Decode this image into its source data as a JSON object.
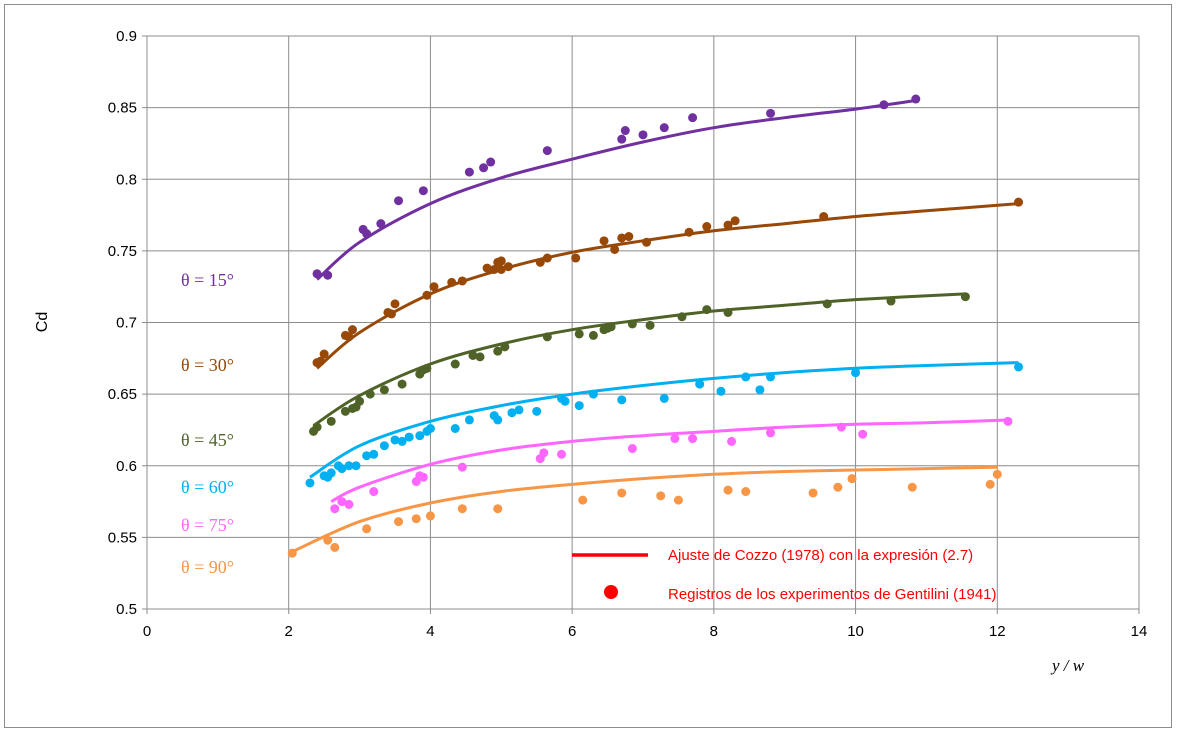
{
  "chart_data": {
    "type": "scatter",
    "title": "",
    "xlabel": "y / w",
    "ylabel": "Cd",
    "xlim": [
      0,
      14
    ],
    "ylim": [
      0.5,
      0.9
    ],
    "xticks": [
      "0",
      "2",
      "4",
      "6",
      "8",
      "10",
      "12",
      "14"
    ],
    "yticks": [
      "0.5",
      "0.55",
      "0.6",
      "0.65",
      "0.7",
      "0.75",
      "0.8",
      "0.85",
      "0.9"
    ],
    "grid": true,
    "legend": {
      "position": "bottom-right",
      "entries": [
        {
          "label": "Ajuste de Cozzo (1978) con la expresión (2.7)",
          "marker": "line",
          "color": "#ff0000"
        },
        {
          "label": "Registros de los experimentos de Gentilini (1941)",
          "marker": "dot",
          "color": "#ff0000"
        }
      ]
    },
    "series": [
      {
        "name": "θ = 15°",
        "color": "#7030a0",
        "points": [
          [
            2.4,
            0.734
          ],
          [
            2.55,
            0.733
          ],
          [
            3.05,
            0.765
          ],
          [
            3.1,
            0.762
          ],
          [
            3.3,
            0.769
          ],
          [
            3.55,
            0.785
          ],
          [
            3.9,
            0.792
          ],
          [
            4.55,
            0.805
          ],
          [
            4.75,
            0.808
          ],
          [
            4.85,
            0.812
          ],
          [
            5.65,
            0.82
          ],
          [
            6.7,
            0.828
          ],
          [
            6.75,
            0.834
          ],
          [
            7.0,
            0.831
          ],
          [
            7.3,
            0.836
          ],
          [
            7.7,
            0.843
          ],
          [
            8.8,
            0.846
          ],
          [
            10.4,
            0.852
          ],
          [
            10.85,
            0.856
          ]
        ],
        "fit": [
          [
            2.4,
            0.73
          ],
          [
            3.0,
            0.756
          ],
          [
            4.0,
            0.783
          ],
          [
            5.0,
            0.801
          ],
          [
            6.0,
            0.814
          ],
          [
            7.0,
            0.826
          ],
          [
            8.0,
            0.836
          ],
          [
            9.0,
            0.843
          ],
          [
            10.0,
            0.849
          ],
          [
            10.85,
            0.855
          ]
        ]
      },
      {
        "name": "θ = 30°",
        "color": "#984807",
        "points": [
          [
            2.4,
            0.672
          ],
          [
            2.45,
            0.673
          ],
          [
            2.5,
            0.678
          ],
          [
            2.8,
            0.691
          ],
          [
            2.85,
            0.69
          ],
          [
            2.9,
            0.695
          ],
          [
            3.4,
            0.707
          ],
          [
            3.45,
            0.706
          ],
          [
            3.5,
            0.713
          ],
          [
            3.95,
            0.719
          ],
          [
            4.05,
            0.725
          ],
          [
            4.3,
            0.728
          ],
          [
            4.45,
            0.729
          ],
          [
            4.8,
            0.738
          ],
          [
            4.9,
            0.737
          ],
          [
            4.95,
            0.742
          ],
          [
            5.0,
            0.743
          ],
          [
            5.0,
            0.737
          ],
          [
            5.1,
            0.739
          ],
          [
            5.55,
            0.742
          ],
          [
            5.65,
            0.745
          ],
          [
            6.05,
            0.745
          ],
          [
            6.45,
            0.757
          ],
          [
            6.6,
            0.751
          ],
          [
            6.7,
            0.759
          ],
          [
            6.8,
            0.76
          ],
          [
            7.05,
            0.756
          ],
          [
            7.65,
            0.763
          ],
          [
            7.9,
            0.767
          ],
          [
            8.2,
            0.768
          ],
          [
            8.3,
            0.771
          ],
          [
            9.55,
            0.774
          ],
          [
            12.3,
            0.784
          ]
        ],
        "fit": [
          [
            2.4,
            0.668
          ],
          [
            3.0,
            0.693
          ],
          [
            4.0,
            0.72
          ],
          [
            5.0,
            0.737
          ],
          [
            6.0,
            0.749
          ],
          [
            7.0,
            0.757
          ],
          [
            8.0,
            0.764
          ],
          [
            9.0,
            0.769
          ],
          [
            10.0,
            0.774
          ],
          [
            11.0,
            0.778
          ],
          [
            12.3,
            0.783
          ]
        ]
      },
      {
        "name": "θ = 45°",
        "color": "#4f6228",
        "points": [
          [
            2.35,
            0.624
          ],
          [
            2.4,
            0.627
          ],
          [
            2.6,
            0.631
          ],
          [
            2.8,
            0.638
          ],
          [
            2.9,
            0.64
          ],
          [
            2.95,
            0.641
          ],
          [
            3.0,
            0.645
          ],
          [
            3.15,
            0.65
          ],
          [
            3.35,
            0.653
          ],
          [
            3.6,
            0.657
          ],
          [
            3.85,
            0.664
          ],
          [
            3.9,
            0.667
          ],
          [
            3.95,
            0.668
          ],
          [
            4.35,
            0.671
          ],
          [
            4.6,
            0.677
          ],
          [
            4.7,
            0.676
          ],
          [
            4.95,
            0.68
          ],
          [
            5.05,
            0.683
          ],
          [
            5.65,
            0.69
          ],
          [
            6.1,
            0.692
          ],
          [
            6.3,
            0.691
          ],
          [
            6.45,
            0.695
          ],
          [
            6.5,
            0.696
          ],
          [
            6.55,
            0.697
          ],
          [
            6.85,
            0.699
          ],
          [
            7.1,
            0.698
          ],
          [
            7.55,
            0.704
          ],
          [
            7.9,
            0.709
          ],
          [
            8.2,
            0.707
          ],
          [
            9.6,
            0.713
          ],
          [
            10.5,
            0.715
          ],
          [
            11.55,
            0.718
          ]
        ],
        "fit": [
          [
            2.35,
            0.628
          ],
          [
            3.0,
            0.649
          ],
          [
            4.0,
            0.671
          ],
          [
            5.0,
            0.685
          ],
          [
            6.0,
            0.695
          ],
          [
            7.0,
            0.702
          ],
          [
            8.0,
            0.708
          ],
          [
            9.0,
            0.712
          ],
          [
            10.0,
            0.716
          ],
          [
            11.55,
            0.72
          ]
        ]
      },
      {
        "name": "θ = 60°",
        "color": "#00b0f0",
        "points": [
          [
            2.3,
            0.588
          ],
          [
            2.5,
            0.593
          ],
          [
            2.55,
            0.592
          ],
          [
            2.6,
            0.595
          ],
          [
            2.7,
            0.6
          ],
          [
            2.75,
            0.598
          ],
          [
            2.85,
            0.6
          ],
          [
            2.95,
            0.6
          ],
          [
            3.1,
            0.607
          ],
          [
            3.2,
            0.608
          ],
          [
            3.35,
            0.614
          ],
          [
            3.5,
            0.618
          ],
          [
            3.6,
            0.617
          ],
          [
            3.7,
            0.62
          ],
          [
            3.85,
            0.621
          ],
          [
            3.95,
            0.624
          ],
          [
            4.0,
            0.626
          ],
          [
            4.35,
            0.626
          ],
          [
            4.55,
            0.632
          ],
          [
            4.9,
            0.635
          ],
          [
            4.95,
            0.632
          ],
          [
            5.15,
            0.637
          ],
          [
            5.25,
            0.639
          ],
          [
            5.5,
            0.638
          ],
          [
            5.85,
            0.647
          ],
          [
            5.9,
            0.645
          ],
          [
            6.1,
            0.642
          ],
          [
            6.3,
            0.65
          ],
          [
            6.7,
            0.646
          ],
          [
            7.3,
            0.647
          ],
          [
            7.8,
            0.657
          ],
          [
            8.1,
            0.652
          ],
          [
            8.45,
            0.662
          ],
          [
            8.65,
            0.653
          ],
          [
            8.8,
            0.662
          ],
          [
            10.0,
            0.665
          ],
          [
            12.3,
            0.669
          ]
        ],
        "fit": [
          [
            2.3,
            0.592
          ],
          [
            3.0,
            0.614
          ],
          [
            4.0,
            0.631
          ],
          [
            5.0,
            0.642
          ],
          [
            6.0,
            0.65
          ],
          [
            7.0,
            0.656
          ],
          [
            8.0,
            0.661
          ],
          [
            9.0,
            0.665
          ],
          [
            10.0,
            0.668
          ],
          [
            11.0,
            0.67
          ],
          [
            12.3,
            0.672
          ]
        ]
      },
      {
        "name": "θ = 75°",
        "color": "#ff66ff",
        "points": [
          [
            2.65,
            0.57
          ],
          [
            2.75,
            0.575
          ],
          [
            2.85,
            0.573
          ],
          [
            3.2,
            0.582
          ],
          [
            3.8,
            0.589
          ],
          [
            3.85,
            0.593
          ],
          [
            3.9,
            0.592
          ],
          [
            4.45,
            0.599
          ],
          [
            5.55,
            0.605
          ],
          [
            5.6,
            0.609
          ],
          [
            5.85,
            0.608
          ],
          [
            6.85,
            0.612
          ],
          [
            7.45,
            0.619
          ],
          [
            7.7,
            0.619
          ],
          [
            8.25,
            0.617
          ],
          [
            8.8,
            0.623
          ],
          [
            9.8,
            0.627
          ],
          [
            10.1,
            0.622
          ],
          [
            12.15,
            0.631
          ]
        ],
        "fit": [
          [
            2.6,
            0.575
          ],
          [
            3.0,
            0.585
          ],
          [
            4.0,
            0.601
          ],
          [
            5.0,
            0.611
          ],
          [
            6.0,
            0.617
          ],
          [
            7.0,
            0.621
          ],
          [
            8.0,
            0.624
          ],
          [
            9.0,
            0.627
          ],
          [
            10.0,
            0.629
          ],
          [
            11.0,
            0.63
          ],
          [
            12.2,
            0.632
          ]
        ]
      },
      {
        "name": "θ = 90°",
        "color": "#f79646",
        "points": [
          [
            2.05,
            0.539
          ],
          [
            2.55,
            0.548
          ],
          [
            2.65,
            0.543
          ],
          [
            3.1,
            0.556
          ],
          [
            3.55,
            0.561
          ],
          [
            3.8,
            0.563
          ],
          [
            4.0,
            0.565
          ],
          [
            4.45,
            0.57
          ],
          [
            4.95,
            0.57
          ],
          [
            6.15,
            0.576
          ],
          [
            6.7,
            0.581
          ],
          [
            7.25,
            0.579
          ],
          [
            7.5,
            0.576
          ],
          [
            8.2,
            0.583
          ],
          [
            8.45,
            0.582
          ],
          [
            9.4,
            0.581
          ],
          [
            9.75,
            0.585
          ],
          [
            9.95,
            0.591
          ],
          [
            10.8,
            0.585
          ],
          [
            11.9,
            0.587
          ],
          [
            12.0,
            0.594
          ]
        ],
        "fit": [
          [
            2.05,
            0.54
          ],
          [
            3.0,
            0.561
          ],
          [
            4.0,
            0.574
          ],
          [
            5.0,
            0.582
          ],
          [
            6.0,
            0.587
          ],
          [
            7.0,
            0.591
          ],
          [
            8.0,
            0.594
          ],
          [
            9.0,
            0.596
          ],
          [
            10.0,
            0.597
          ],
          [
            11.0,
            0.598
          ],
          [
            12.0,
            0.599
          ]
        ]
      }
    ]
  }
}
